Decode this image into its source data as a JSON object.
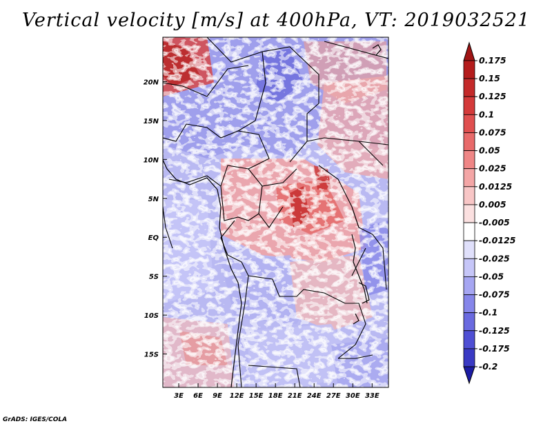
{
  "title": "Vertical velocity [m/s] at 400hPa, VT: 2019032521",
  "credit": "GrADS: IGES/COLA",
  "map": {
    "lon_range": [
      0,
      35
    ],
    "lat_range": [
      -20,
      25
    ],
    "lat_ticks": [
      {
        "lat": 20,
        "label": "20N"
      },
      {
        "lat": 15,
        "label": "15N"
      },
      {
        "lat": 10,
        "label": "10N"
      },
      {
        "lat": 5,
        "label": "5N"
      },
      {
        "lat": 0,
        "label": "EQ"
      },
      {
        "lat": -5,
        "label": "5S"
      },
      {
        "lat": -10,
        "label": "10S"
      },
      {
        "lat": -15,
        "label": "15S"
      }
    ],
    "lon_ticks": [
      {
        "lon": 3,
        "label": "3E"
      },
      {
        "lon": 6,
        "label": "6E"
      },
      {
        "lon": 9,
        "label": "9E"
      },
      {
        "lon": 12,
        "label": "12E"
      },
      {
        "lon": 15,
        "label": "15E"
      },
      {
        "lon": 18,
        "label": "18E"
      },
      {
        "lon": 21,
        "label": "21E"
      },
      {
        "lon": 24,
        "label": "24E"
      },
      {
        "lon": 27,
        "label": "27E"
      },
      {
        "lon": 30,
        "label": "30E"
      },
      {
        "lon": 33,
        "label": "33E"
      }
    ]
  },
  "colorbar": {
    "levels": [
      {
        "label": "0.175",
        "color": "#b41c1c"
      },
      {
        "label": "0.15",
        "color": "#c42a2a"
      },
      {
        "label": "0.125",
        "color": "#d43a3a"
      },
      {
        "label": "0.1",
        "color": "#e04f4f"
      },
      {
        "label": "0.075",
        "color": "#e86a6a"
      },
      {
        "label": "0.05",
        "color": "#ef8686"
      },
      {
        "label": "0.025",
        "color": "#f4a6a6"
      },
      {
        "label": "0.0125",
        "color": "#f8c6c6"
      },
      {
        "label": "0.005",
        "color": "#fbe0e0"
      },
      {
        "label": "-0.005",
        "color": "#ffffff"
      },
      {
        "label": "-0.0125",
        "color": "#e0e0fb"
      },
      {
        "label": "-0.025",
        "color": "#c6c6f8"
      },
      {
        "label": "-0.05",
        "color": "#a6a6f2"
      },
      {
        "label": "-0.075",
        "color": "#8686ea"
      },
      {
        "label": "-0.1",
        "color": "#6a6ae0"
      },
      {
        "label": "-0.125",
        "color": "#4f4fd4"
      },
      {
        "label": "-0.175",
        "color": "#3a3ac4"
      },
      {
        "label": "-0.2",
        "color": "#2a2ab4"
      }
    ],
    "top_arrow_color": "#a01414",
    "bottom_arrow_color": "#1c1ca4"
  }
}
